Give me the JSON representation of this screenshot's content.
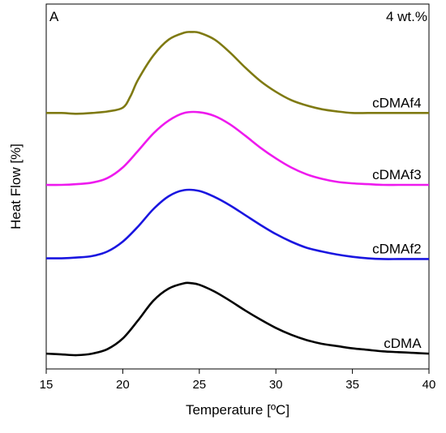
{
  "chart_data": {
    "type": "line",
    "panel_label": "A",
    "annotation": "4 wt.%",
    "xlabel": "Temperature [ºC]",
    "ylabel": "Heat Flow [%]",
    "xlim": [
      15,
      40
    ],
    "ylim": [
      0,
      4.5
    ],
    "xticks": [
      15,
      20,
      25,
      30,
      35,
      40
    ],
    "xtick_labels": [
      "15",
      "20",
      "25",
      "30",
      "35",
      "40"
    ],
    "grid": false,
    "y_tick_labels_shown": false,
    "series": [
      {
        "name": "cDMA",
        "color": "#000000",
        "label_x": 39.5,
        "x": [
          15,
          16,
          17,
          18,
          19,
          20,
          21,
          22,
          23,
          24,
          24.5,
          25,
          26,
          27,
          28,
          29,
          30,
          31,
          32,
          33,
          34,
          35,
          36,
          37,
          38,
          39,
          40
        ],
        "y": [
          0.02,
          0.01,
          0.0,
          0.02,
          0.08,
          0.22,
          0.46,
          0.72,
          0.88,
          0.95,
          0.95,
          0.93,
          0.84,
          0.72,
          0.59,
          0.47,
          0.36,
          0.27,
          0.2,
          0.15,
          0.12,
          0.09,
          0.07,
          0.05,
          0.04,
          0.03,
          0.02
        ]
      },
      {
        "name": "cDMAf2",
        "color": "#1a16e0",
        "label_x": 39.5,
        "x": [
          15,
          16,
          17,
          18,
          19,
          20,
          21,
          22,
          23,
          24,
          25,
          26,
          27,
          28,
          29,
          30,
          31,
          32,
          33,
          34,
          35,
          36,
          37,
          38,
          39,
          40
        ],
        "y": [
          1.28,
          1.28,
          1.29,
          1.31,
          1.37,
          1.5,
          1.7,
          1.93,
          2.1,
          2.18,
          2.17,
          2.09,
          1.98,
          1.85,
          1.72,
          1.6,
          1.5,
          1.42,
          1.37,
          1.33,
          1.3,
          1.28,
          1.27,
          1.27,
          1.27,
          1.27
        ]
      },
      {
        "name": "cDMAf3",
        "color": "#ee1aee",
        "label_x": 39.5,
        "x": [
          15,
          16,
          17,
          18,
          19,
          20,
          21,
          22,
          23,
          24,
          25,
          26,
          27,
          28,
          29,
          30,
          31,
          32,
          33,
          34,
          35,
          36,
          37,
          38,
          39,
          40
        ],
        "y": [
          2.25,
          2.25,
          2.26,
          2.28,
          2.34,
          2.48,
          2.7,
          2.93,
          3.1,
          3.2,
          3.21,
          3.16,
          3.05,
          2.9,
          2.74,
          2.6,
          2.48,
          2.39,
          2.33,
          2.29,
          2.27,
          2.26,
          2.25,
          2.25,
          2.25,
          2.25
        ]
      },
      {
        "name": "cDMAf4",
        "color": "#7f7a12",
        "label_x": 39.5,
        "x": [
          15,
          16,
          17,
          18,
          19,
          20,
          20.5,
          21,
          22,
          23,
          24,
          24.5,
          25,
          26,
          27,
          28,
          29,
          30,
          31,
          32,
          33,
          34,
          35,
          36,
          37,
          38,
          39,
          40
        ],
        "y": [
          3.2,
          3.2,
          3.19,
          3.2,
          3.22,
          3.27,
          3.42,
          3.64,
          3.96,
          4.17,
          4.26,
          4.27,
          4.26,
          4.17,
          4.0,
          3.8,
          3.62,
          3.48,
          3.37,
          3.3,
          3.25,
          3.22,
          3.2,
          3.2,
          3.2,
          3.2,
          3.2,
          3.2
        ]
      }
    ]
  }
}
